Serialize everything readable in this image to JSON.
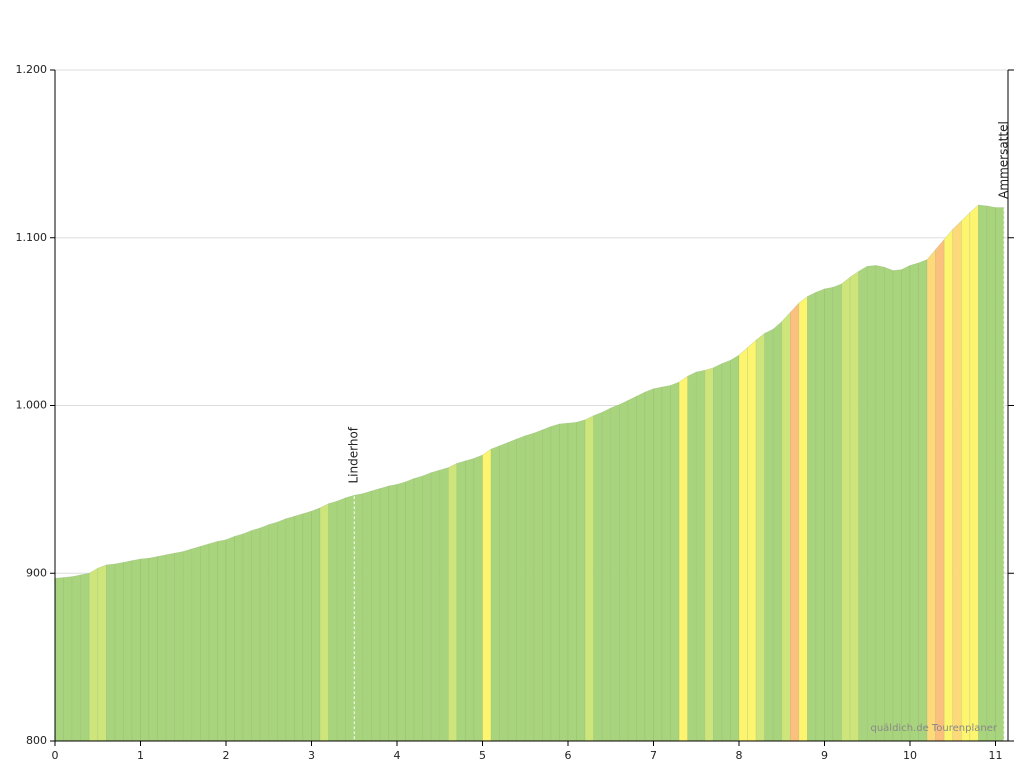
{
  "chart_data": {
    "type": "elevation-profile",
    "x": [
      0,
      0.1,
      0.2,
      0.3,
      0.4,
      0.5,
      0.6,
      0.7,
      0.8,
      0.9,
      1,
      1.1,
      1.2,
      1.3,
      1.4,
      1.5,
      1.6,
      1.7,
      1.8,
      1.9,
      2,
      2.1,
      2.2,
      2.3,
      2.4,
      2.5,
      2.6,
      2.7,
      2.8,
      2.9,
      3,
      3.1,
      3.2,
      3.3,
      3.4,
      3.5,
      3.6,
      3.7,
      3.8,
      3.9,
      4,
      4.1,
      4.2,
      4.3,
      4.4,
      4.5,
      4.6,
      4.7,
      4.8,
      4.9,
      5,
      5.1,
      5.2,
      5.3,
      5.4,
      5.5,
      5.6,
      5.7,
      5.8,
      5.9,
      6,
      6.1,
      6.2,
      6.3,
      6.4,
      6.5,
      6.6,
      6.7,
      6.8,
      6.9,
      7,
      7.1,
      7.2,
      7.3,
      7.4,
      7.5,
      7.6,
      7.7,
      7.8,
      7.9,
      8,
      8.1,
      8.2,
      8.3,
      8.4,
      8.5,
      8.6,
      8.7,
      8.8,
      8.9,
      9,
      9.1,
      9.2,
      9.3,
      9.4,
      9.5,
      9.6,
      9.7,
      9.8,
      9.9,
      10,
      10.1,
      10.2,
      10.3,
      10.4,
      10.5,
      10.6,
      10.7,
      10.8,
      10.9,
      11
    ],
    "values": [
      897,
      897.5,
      898,
      899,
      900,
      903,
      905,
      905.5,
      906.5,
      907.5,
      908.5,
      909,
      910,
      911,
      912,
      913,
      914.5,
      916,
      917.5,
      919,
      920,
      922,
      923.5,
      925.5,
      927,
      929,
      930.5,
      932.5,
      934,
      935.5,
      937,
      939,
      941.5,
      943,
      945,
      946.5,
      947.5,
      949,
      950.5,
      952,
      953,
      954.5,
      956.5,
      958,
      960,
      961.5,
      963,
      965.5,
      967,
      968.5,
      970.5,
      974,
      976,
      978,
      980,
      982,
      983.5,
      985.5,
      987.5,
      989,
      989.5,
      990,
      991.5,
      994,
      996,
      998.5,
      1000.5,
      1003,
      1005.5,
      1008,
      1010,
      1011,
      1012,
      1014,
      1017.5,
      1020,
      1021,
      1022.5,
      1025,
      1027,
      1030,
      1034.5,
      1039,
      1043,
      1045.5,
      1050,
      1055.5,
      1061,
      1065,
      1067.5,
      1069.5,
      1070.5,
      1072.5,
      1076.5,
      1080,
      1083,
      1083.5,
      1082.5,
      1080.5,
      1081,
      1083.5,
      1085,
      1087,
      1093,
      1099,
      1105,
      1110,
      1115,
      1119.5,
      1119,
      1118
    ],
    "colors": [
      "#a9d47e",
      "#a9d47e",
      "#a9d47e",
      "#a9d47e",
      "#cde57b",
      "#cde57b",
      "#a9d47e",
      "#a9d47e",
      "#a9d47e",
      "#a9d47e",
      "#a9d47e",
      "#a9d47e",
      "#a9d47e",
      "#a9d47e",
      "#a9d47e",
      "#a9d47e",
      "#a9d47e",
      "#a9d47e",
      "#a9d47e",
      "#a9d47e",
      "#a9d47e",
      "#a9d47e",
      "#a9d47e",
      "#a9d47e",
      "#a9d47e",
      "#a9d47e",
      "#a9d47e",
      "#a9d47e",
      "#a9d47e",
      "#a9d47e",
      "#a9d47e",
      "#cde57b",
      "#a9d47e",
      "#a9d47e",
      "#a9d47e",
      "#a9d47e",
      "#a9d47e",
      "#a9d47e",
      "#a9d47e",
      "#a9d47e",
      "#a9d47e",
      "#a9d47e",
      "#a9d47e",
      "#a9d47e",
      "#a9d47e",
      "#a9d47e",
      "#cde57b",
      "#a9d47e",
      "#a9d47e",
      "#a9d47e",
      "#fdf56f",
      "#a9d47e",
      "#a9d47e",
      "#a9d47e",
      "#a9d47e",
      "#a9d47e",
      "#a9d47e",
      "#a9d47e",
      "#a9d47e",
      "#a9d47e",
      "#a9d47e",
      "#a9d47e",
      "#cde57b",
      "#a9d47e",
      "#a9d47e",
      "#a9d47e",
      "#a9d47e",
      "#a9d47e",
      "#a9d47e",
      "#a9d47e",
      "#a9d47e",
      "#a9d47e",
      "#a9d47e",
      "#fdf56f",
      "#a9d47e",
      "#a9d47e",
      "#cde57b",
      "#a9d47e",
      "#a9d47e",
      "#a9d47e",
      "#fdf56f",
      "#fdf56f",
      "#cde57b",
      "#a9d47e",
      "#a9d47e",
      "#cde57b",
      "#fcc07e",
      "#fdf56f",
      "#a9d47e",
      "#a9d47e",
      "#a9d47e",
      "#a9d47e",
      "#cde57b",
      "#cde57b",
      "#a9d47e",
      "#a9d47e",
      "#a9d47e",
      "#a9d47e",
      "#a9d47e",
      "#a9d47e",
      "#a9d47e",
      "#a9d47e",
      "#fdd97a",
      "#fcc07e",
      "#fdf56f",
      "#fdd97a",
      "#fdf56f",
      "#fdf56f",
      "#a9d47e",
      "#a9d47e",
      "#a9d47e"
    ],
    "xlim": [
      0,
      11.1
    ],
    "xticks": [
      0,
      1,
      2,
      3,
      4,
      5,
      6,
      7,
      8,
      9,
      10,
      11
    ],
    "ylim": [
      800,
      1200
    ],
    "yticks": [
      {
        "value": 800,
        "label": "800"
      },
      {
        "value": 900,
        "label": "900"
      },
      {
        "value": 1000,
        "label": "1.000"
      },
      {
        "value": 1100,
        "label": "1.100"
      },
      {
        "value": 1200,
        "label": "1.200"
      }
    ],
    "grid": true,
    "annotations": [
      {
        "label": "Linderhof",
        "x": 3.5
      },
      {
        "label": "Ammersattel",
        "x": 11.1
      }
    ],
    "watermark": "quäldich.de Tourenplaner"
  }
}
